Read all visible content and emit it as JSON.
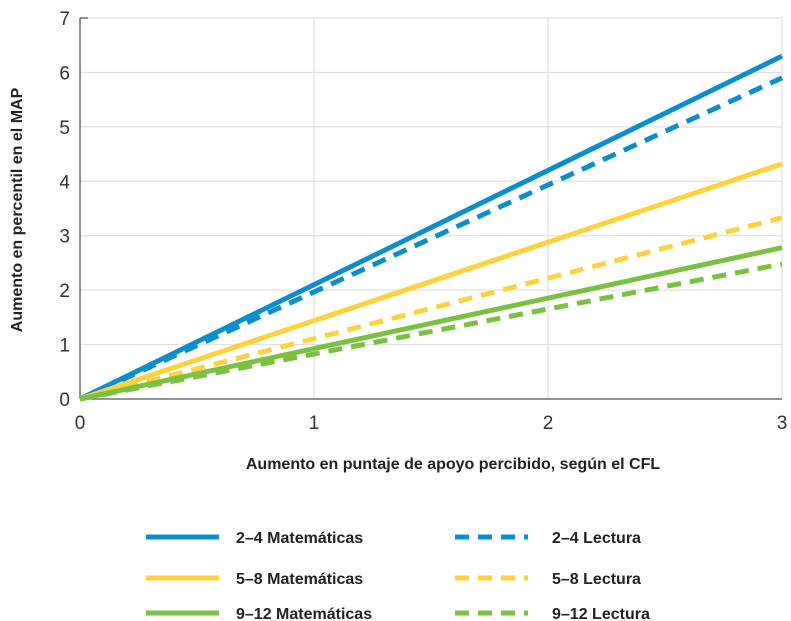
{
  "chart_data": {
    "type": "line",
    "xlabel": "Aumento en puntaje de apoyo percibido, según el CFL",
    "ylabel": "Aumento en percentil en el MAP",
    "xlim": [
      0,
      3
    ],
    "ylim": [
      0,
      7
    ],
    "x_ticks": [
      "0",
      "1",
      "2",
      "3"
    ],
    "y_ticks": [
      "0",
      "1",
      "2",
      "3",
      "4",
      "5",
      "6",
      "7"
    ],
    "grid": true,
    "legend_position": "bottom",
    "series": [
      {
        "name": "2–4 Matemáticas",
        "color": "#0a8fcc",
        "dash": false,
        "x": [
          0,
          3
        ],
        "y": [
          0,
          6.3
        ]
      },
      {
        "name": "2–4 Lectura",
        "color": "#0a8fcc",
        "dash": true,
        "x": [
          0,
          3
        ],
        "y": [
          0,
          5.9
        ]
      },
      {
        "name": "5–8 Matemáticas",
        "color": "#fdd23e",
        "dash": false,
        "x": [
          0,
          3
        ],
        "y": [
          0,
          4.32
        ]
      },
      {
        "name": "5–8 Lectura",
        "color": "#fdd23e",
        "dash": true,
        "x": [
          0,
          3
        ],
        "y": [
          0,
          3.33
        ]
      },
      {
        "name": "9–12 Matemáticas",
        "color": "#7ac143",
        "dash": false,
        "x": [
          0,
          3
        ],
        "y": [
          0,
          2.78
        ]
      },
      {
        "name": "9–12 Lectura",
        "color": "#7ac143",
        "dash": true,
        "x": [
          0,
          3
        ],
        "y": [
          0,
          2.48
        ]
      }
    ]
  }
}
